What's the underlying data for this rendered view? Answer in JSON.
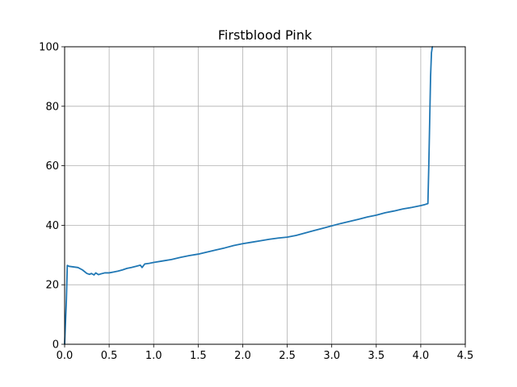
{
  "chart_data": {
    "type": "line",
    "title": "Firstblood Pink",
    "xlabel": "",
    "ylabel": "",
    "xlim": [
      0,
      4.5
    ],
    "ylim": [
      0,
      100
    ],
    "xticks": [
      "0.0",
      "0.5",
      "1.0",
      "1.5",
      "2.0",
      "2.5",
      "3.0",
      "3.5",
      "4.0",
      "4.5"
    ],
    "yticks": [
      "0",
      "20",
      "40",
      "60",
      "80",
      "100"
    ],
    "grid": true,
    "series": [
      {
        "color": "#1f77b4",
        "x": [
          0.0,
          0.02,
          0.03,
          0.05,
          0.1,
          0.15,
          0.2,
          0.25,
          0.28,
          0.3,
          0.33,
          0.35,
          0.38,
          0.4,
          0.45,
          0.5,
          0.55,
          0.6,
          0.65,
          0.7,
          0.75,
          0.8,
          0.85,
          0.87,
          0.9,
          0.95,
          1.0,
          1.1,
          1.2,
          1.3,
          1.4,
          1.5,
          1.6,
          1.7,
          1.8,
          1.9,
          2.0,
          2.1,
          2.2,
          2.3,
          2.4,
          2.5,
          2.6,
          2.7,
          2.8,
          2.9,
          3.0,
          3.1,
          3.2,
          3.3,
          3.4,
          3.5,
          3.6,
          3.7,
          3.8,
          3.9,
          4.0,
          4.05,
          4.08,
          4.09,
          4.1,
          4.11,
          4.12,
          4.13
        ],
        "y": [
          0,
          15,
          26.5,
          26.2,
          26.0,
          25.8,
          25.0,
          23.8,
          23.5,
          23.8,
          23.3,
          24.0,
          23.4,
          23.6,
          24.0,
          24.0,
          24.3,
          24.6,
          25.0,
          25.5,
          25.8,
          26.2,
          26.6,
          25.8,
          27.0,
          27.2,
          27.5,
          28.0,
          28.5,
          29.2,
          29.8,
          30.3,
          31.0,
          31.7,
          32.4,
          33.2,
          33.8,
          34.3,
          34.8,
          35.3,
          35.7,
          36.0,
          36.6,
          37.4,
          38.2,
          39.0,
          39.8,
          40.6,
          41.3,
          42.0,
          42.8,
          43.4,
          44.2,
          44.8,
          45.5,
          46.0,
          46.6,
          47.0,
          47.3,
          60.0,
          75.0,
          90.0,
          98.0,
          100.0
        ]
      }
    ]
  }
}
